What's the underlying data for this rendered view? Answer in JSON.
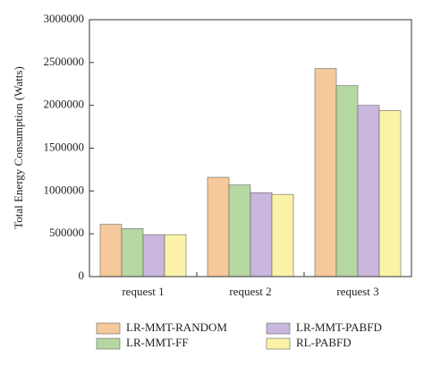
{
  "chart_data": {
    "type": "bar",
    "y_label": "Total Energy Consumption (Watts)",
    "categories": [
      "request 1",
      "request 2",
      "request 3"
    ],
    "series": [
      {
        "name": "LR-MMT-RANDOM",
        "color": "#f5c99b",
        "values": [
          610000,
          1160000,
          2430000
        ]
      },
      {
        "name": "LR-MMT-FF",
        "color": "#b6d7a1",
        "values": [
          560000,
          1070000,
          2230000
        ]
      },
      {
        "name": "LR-MMT-PABFD",
        "color": "#c9b7de",
        "values": [
          490000,
          980000,
          2000000
        ]
      },
      {
        "name": "RL-PABFD",
        "color": "#faf2a6",
        "values": [
          490000,
          960000,
          1940000
        ]
      }
    ],
    "ylim": [
      0,
      3000000
    ],
    "yticks": [
      0,
      500000,
      1000000,
      1500000,
      2000000,
      2500000,
      3000000
    ]
  }
}
